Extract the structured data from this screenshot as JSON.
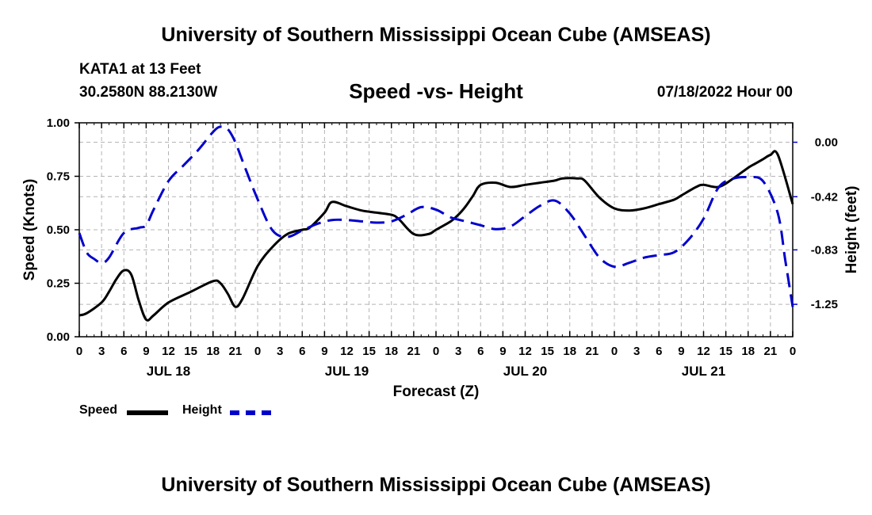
{
  "header": {
    "title": "University of Southern Mississippi Ocean Cube (AMSEAS)",
    "station": "KATA1 at 13 Feet",
    "coords": "30.2580N  88.2130W",
    "run_time": "07/18/2022 Hour 00"
  },
  "footer": {
    "title": "University of Southern Mississippi Ocean Cube (AMSEAS)"
  },
  "legend": {
    "speed_label": "Speed",
    "height_label": "Height"
  },
  "colors": {
    "speed": "#000000",
    "height": "#0000cc",
    "grid": "#b4b4b4"
  },
  "chart_data": {
    "type": "line",
    "title": "Speed -vs- Height",
    "xlabel": "Forecast (Z)",
    "ylabel": "Speed (Knots)",
    "y2label": "Height (feet)",
    "x_range": [
      0,
      96
    ],
    "x_tick_labels": [
      "0",
      "3",
      "6",
      "9",
      "12",
      "15",
      "18",
      "21",
      "0",
      "3",
      "6",
      "9",
      "12",
      "15",
      "18",
      "21",
      "0",
      "3",
      "6",
      "9",
      "12",
      "15",
      "18",
      "21",
      "0",
      "3",
      "6",
      "9",
      "12",
      "15",
      "18",
      "21",
      "0"
    ],
    "day_labels": [
      {
        "label": "JUL 18",
        "hour": 12
      },
      {
        "label": "JUL 19",
        "hour": 36
      },
      {
        "label": "JUL 20",
        "hour": 60
      },
      {
        "label": "JUL 21",
        "hour": 84
      }
    ],
    "ylim": [
      0,
      1
    ],
    "y_ticks": [
      0,
      0.25,
      0.5,
      0.75,
      1.0
    ],
    "y_tick_labels": [
      "0.00",
      "0.25",
      "0.50",
      "0.75",
      "1.00"
    ],
    "y2lim": [
      -1.5,
      0.15
    ],
    "y2_ticks": [
      0,
      -0.42,
      -0.83,
      -1.25
    ],
    "y2_tick_labels": [
      "0.00",
      "-0.42",
      "-0.83",
      "-1.25"
    ],
    "series": [
      {
        "name": "Speed",
        "axis": "left",
        "style": "solid",
        "x": [
          0,
          1,
          3,
          4,
          5,
          6,
          7,
          8,
          9,
          10,
          12,
          15,
          18,
          19,
          20,
          21,
          22,
          24,
          26,
          28,
          30,
          31,
          33,
          34,
          36,
          38,
          40,
          42,
          43,
          45,
          47,
          48,
          50,
          51,
          52,
          53,
          54,
          56,
          58,
          60,
          62,
          64,
          65,
          67,
          68,
          70,
          72,
          74,
          76,
          78,
          80,
          81,
          83,
          84,
          86,
          88,
          90,
          91,
          92,
          93,
          94,
          96
        ],
        "y": [
          0.1,
          0.11,
          0.16,
          0.21,
          0.27,
          0.31,
          0.29,
          0.17,
          0.08,
          0.1,
          0.16,
          0.21,
          0.26,
          0.25,
          0.2,
          0.14,
          0.18,
          0.33,
          0.42,
          0.48,
          0.5,
          0.51,
          0.58,
          0.63,
          0.61,
          0.59,
          0.58,
          0.57,
          0.55,
          0.48,
          0.48,
          0.5,
          0.54,
          0.57,
          0.61,
          0.66,
          0.71,
          0.72,
          0.7,
          0.71,
          0.72,
          0.73,
          0.74,
          0.74,
          0.73,
          0.65,
          0.6,
          0.59,
          0.6,
          0.62,
          0.64,
          0.66,
          0.7,
          0.71,
          0.7,
          0.74,
          0.79,
          0.81,
          0.83,
          0.85,
          0.85,
          0.62
        ]
      },
      {
        "name": "Height",
        "axis": "right",
        "style": "dashed",
        "x": [
          0,
          1,
          2,
          3,
          4,
          6,
          8,
          9,
          10,
          12,
          14,
          16,
          18,
          19,
          20,
          21,
          22,
          24,
          26,
          28,
          30,
          32,
          34,
          36,
          38,
          40,
          42,
          44,
          46,
          48,
          50,
          52,
          54,
          56,
          58,
          60,
          62,
          64,
          66,
          68,
          70,
          72,
          74,
          76,
          78,
          80,
          82,
          84,
          86,
          88,
          90,
          92,
          94,
          95,
          96
        ],
        "y": [
          -0.7,
          -0.85,
          -0.9,
          -0.93,
          -0.89,
          -0.7,
          -0.66,
          -0.64,
          -0.52,
          -0.3,
          -0.18,
          -0.06,
          0.08,
          0.12,
          0.1,
          0.0,
          -0.15,
          -0.44,
          -0.68,
          -0.73,
          -0.68,
          -0.63,
          -0.6,
          -0.6,
          -0.61,
          -0.62,
          -0.61,
          -0.56,
          -0.5,
          -0.52,
          -0.58,
          -0.61,
          -0.64,
          -0.67,
          -0.65,
          -0.57,
          -0.49,
          -0.45,
          -0.55,
          -0.72,
          -0.89,
          -0.96,
          -0.93,
          -0.89,
          -0.87,
          -0.85,
          -0.75,
          -0.59,
          -0.35,
          -0.28,
          -0.27,
          -0.3,
          -0.55,
          -0.91,
          -1.27
        ]
      }
    ]
  }
}
